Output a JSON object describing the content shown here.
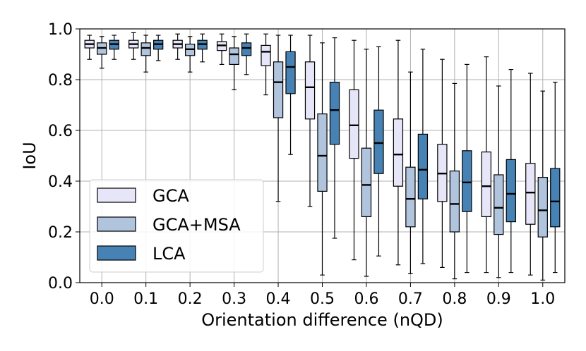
{
  "chart_data": {
    "type": "box",
    "title": "",
    "xlabel": "Orientation difference (nQD)",
    "ylabel": "IoU",
    "ylim": [
      0,
      1
    ],
    "yticks": [
      "0.0",
      "0.2",
      "0.4",
      "0.6",
      "0.8",
      "1.0"
    ],
    "categories": [
      "0.0",
      "0.1",
      "0.2",
      "0.3",
      "0.4",
      "0.5",
      "0.6",
      "0.7",
      "0.8",
      "0.9",
      "1.0"
    ],
    "grid": true,
    "legend": {
      "position": "lower-left"
    },
    "series": [
      {
        "name": "GCA",
        "color": "#e6e6f8",
        "boxes": [
          {
            "min": 0.88,
            "q1": 0.925,
            "median": 0.94,
            "q3": 0.955,
            "max": 0.975
          },
          {
            "min": 0.88,
            "q1": 0.925,
            "median": 0.94,
            "q3": 0.955,
            "max": 0.985
          },
          {
            "min": 0.88,
            "q1": 0.925,
            "median": 0.94,
            "q3": 0.955,
            "max": 0.98
          },
          {
            "min": 0.86,
            "q1": 0.915,
            "median": 0.935,
            "q3": 0.95,
            "max": 0.98
          },
          {
            "min": 0.74,
            "q1": 0.855,
            "median": 0.91,
            "q3": 0.935,
            "max": 0.98
          },
          {
            "min": 0.3,
            "q1": 0.645,
            "median": 0.77,
            "q3": 0.87,
            "max": 0.975
          },
          {
            "min": 0.09,
            "q1": 0.49,
            "median": 0.62,
            "q3": 0.76,
            "max": 0.955
          },
          {
            "min": 0.07,
            "q1": 0.38,
            "median": 0.505,
            "q3": 0.645,
            "max": 0.955
          },
          {
            "min": 0.06,
            "q1": 0.32,
            "median": 0.43,
            "q3": 0.545,
            "max": 0.88
          },
          {
            "min": 0.04,
            "q1": 0.26,
            "median": 0.38,
            "q3": 0.515,
            "max": 0.89
          },
          {
            "min": 0.03,
            "q1": 0.23,
            "median": 0.355,
            "q3": 0.47,
            "max": 0.825
          }
        ]
      },
      {
        "name": "GCA+MSA",
        "color": "#b0c4de",
        "boxes": [
          {
            "min": 0.845,
            "q1": 0.9,
            "median": 0.925,
            "q3": 0.945,
            "max": 0.97
          },
          {
            "min": 0.83,
            "q1": 0.895,
            "median": 0.925,
            "q3": 0.945,
            "max": 0.975
          },
          {
            "min": 0.83,
            "q1": 0.895,
            "median": 0.92,
            "q3": 0.94,
            "max": 0.97
          },
          {
            "min": 0.76,
            "q1": 0.86,
            "median": 0.9,
            "q3": 0.925,
            "max": 0.97
          },
          {
            "min": 0.32,
            "q1": 0.65,
            "median": 0.79,
            "q3": 0.87,
            "max": 0.975
          },
          {
            "min": 0.03,
            "q1": 0.36,
            "median": 0.5,
            "q3": 0.665,
            "max": 0.945
          },
          {
            "min": 0.025,
            "q1": 0.26,
            "median": 0.385,
            "q3": 0.53,
            "max": 0.92
          },
          {
            "min": 0.035,
            "q1": 0.22,
            "median": 0.33,
            "q3": 0.455,
            "max": 0.83
          },
          {
            "min": 0.015,
            "q1": 0.2,
            "median": 0.31,
            "q3": 0.44,
            "max": 0.785
          },
          {
            "min": 0.02,
            "q1": 0.19,
            "median": 0.295,
            "q3": 0.425,
            "max": 0.775
          },
          {
            "min": 0.01,
            "q1": 0.18,
            "median": 0.285,
            "q3": 0.415,
            "max": 0.755
          }
        ]
      },
      {
        "name": "LCA",
        "color": "#4682b4",
        "boxes": [
          {
            "min": 0.88,
            "q1": 0.92,
            "median": 0.94,
            "q3": 0.955,
            "max": 0.975
          },
          {
            "min": 0.875,
            "q1": 0.92,
            "median": 0.94,
            "q3": 0.955,
            "max": 0.975
          },
          {
            "min": 0.87,
            "q1": 0.92,
            "median": 0.94,
            "q3": 0.955,
            "max": 0.98
          },
          {
            "min": 0.82,
            "q1": 0.895,
            "median": 0.925,
            "q3": 0.945,
            "max": 0.98
          },
          {
            "min": 0.505,
            "q1": 0.745,
            "median": 0.85,
            "q3": 0.91,
            "max": 0.975
          },
          {
            "min": 0.175,
            "q1": 0.545,
            "median": 0.68,
            "q3": 0.79,
            "max": 0.965
          },
          {
            "min": 0.105,
            "q1": 0.43,
            "median": 0.55,
            "q3": 0.68,
            "max": 0.93
          },
          {
            "min": 0.075,
            "q1": 0.33,
            "median": 0.445,
            "q3": 0.585,
            "max": 0.92
          },
          {
            "min": 0.04,
            "q1": 0.28,
            "median": 0.395,
            "q3": 0.52,
            "max": 0.86
          },
          {
            "min": 0.04,
            "q1": 0.24,
            "median": 0.35,
            "q3": 0.485,
            "max": 0.84
          },
          {
            "min": 0.04,
            "q1": 0.22,
            "median": 0.32,
            "q3": 0.45,
            "max": 0.79
          }
        ]
      }
    ]
  }
}
